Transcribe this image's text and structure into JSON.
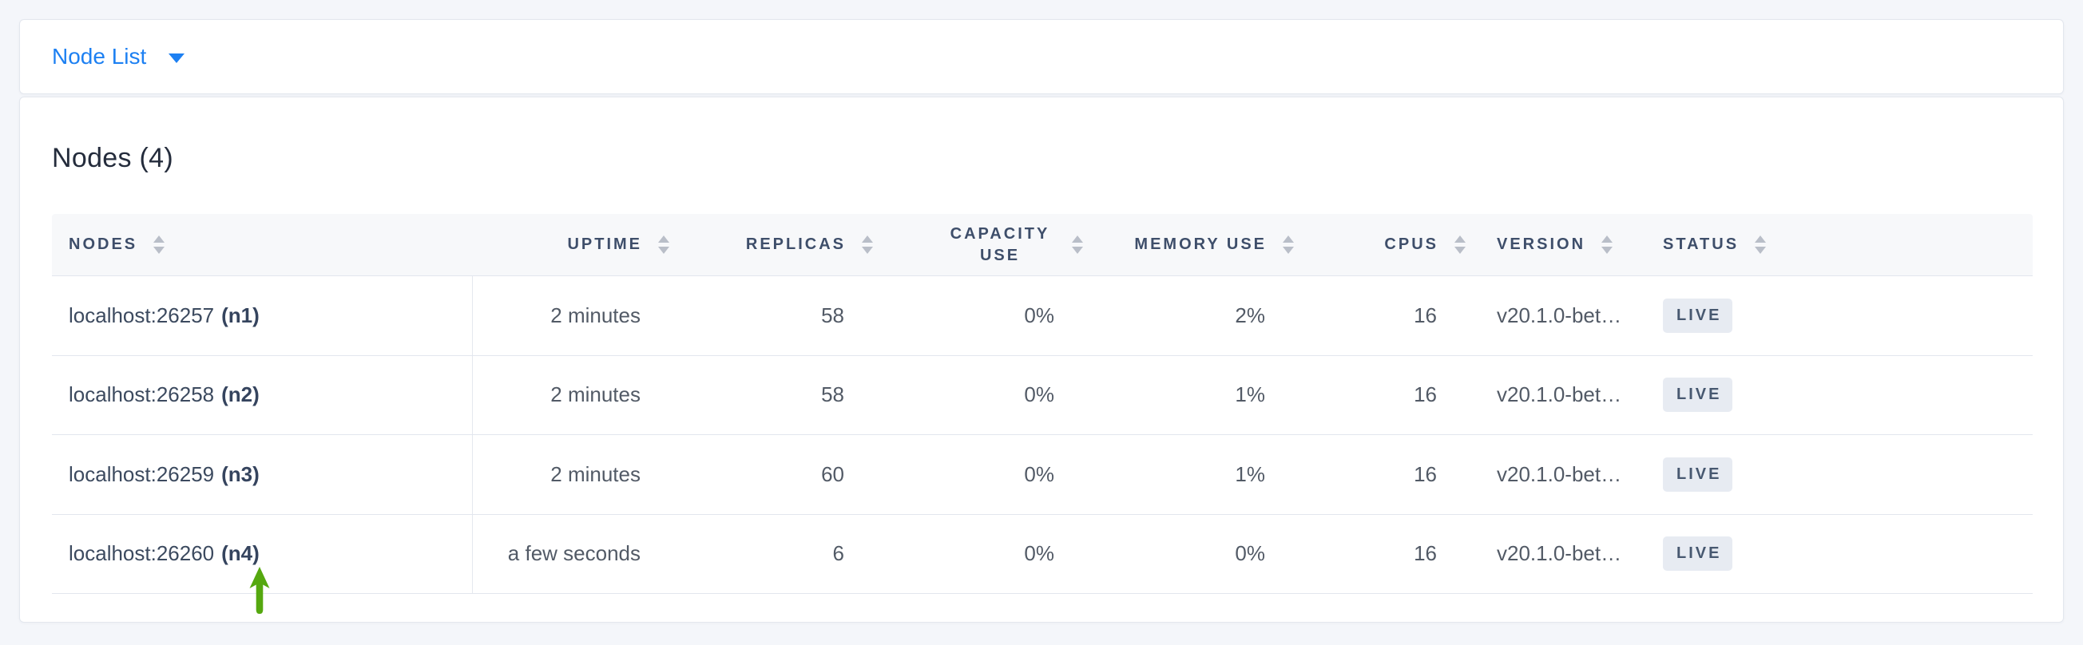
{
  "view_selector": {
    "label": "Node List",
    "icon": "caret-down-icon"
  },
  "main": {
    "heading": "Nodes (4)"
  },
  "table": {
    "columns": [
      {
        "key": "nodes",
        "label": "NODES",
        "align": "left",
        "sortable": true
      },
      {
        "key": "uptime",
        "label": "UPTIME",
        "align": "right",
        "sortable": true
      },
      {
        "key": "replicas",
        "label": "REPLICAS",
        "align": "right",
        "sortable": true
      },
      {
        "key": "capacity_use",
        "label": "CAPACITY USE",
        "align": "right",
        "sortable": true,
        "wrap": true
      },
      {
        "key": "memory_use",
        "label": "MEMORY USE",
        "align": "right",
        "sortable": true
      },
      {
        "key": "cpus",
        "label": "CPUS",
        "align": "right",
        "sortable": true
      },
      {
        "key": "version",
        "label": "VERSION",
        "align": "left",
        "sortable": true
      },
      {
        "key": "status",
        "label": "STATUS",
        "align": "left",
        "sortable": true
      }
    ],
    "rows": [
      {
        "address": "localhost:26257",
        "node_id": "(n1)",
        "uptime": "2 minutes",
        "replicas": "58",
        "capacity_use": "0%",
        "memory_use": "2%",
        "cpus": "16",
        "version": "v20.1.0-bet…",
        "status": "LIVE"
      },
      {
        "address": "localhost:26258",
        "node_id": "(n2)",
        "uptime": "2 minutes",
        "replicas": "58",
        "capacity_use": "0%",
        "memory_use": "1%",
        "cpus": "16",
        "version": "v20.1.0-bet…",
        "status": "LIVE"
      },
      {
        "address": "localhost:26259",
        "node_id": "(n3)",
        "uptime": "2 minutes",
        "replicas": "60",
        "capacity_use": "0%",
        "memory_use": "1%",
        "cpus": "16",
        "version": "v20.1.0-bet…",
        "status": "LIVE"
      },
      {
        "address": "localhost:26260",
        "node_id": "(n4)",
        "uptime": "a few seconds",
        "replicas": "6",
        "capacity_use": "0%",
        "memory_use": "0%",
        "cpus": "16",
        "version": "v20.1.0-bet…",
        "status": "LIVE"
      }
    ]
  },
  "annotation": {
    "type": "arrow-up",
    "color": "#55a80f"
  },
  "colors": {
    "page_background": "#f4f6fa",
    "card_background": "#ffffff",
    "card_border": "#e3e7ee",
    "link_blue": "#1d80f2",
    "header_background": "#f7f8fa",
    "header_text": "#3e4e6a",
    "sort_icon": "#b9bec8",
    "row_border": "#e2e6ee",
    "cell_text": "#525a66",
    "node_text": "#3c4a5f",
    "badge_background": "#e7ebf2",
    "badge_text": "#475870",
    "arrow_green": "#55a80f"
  }
}
